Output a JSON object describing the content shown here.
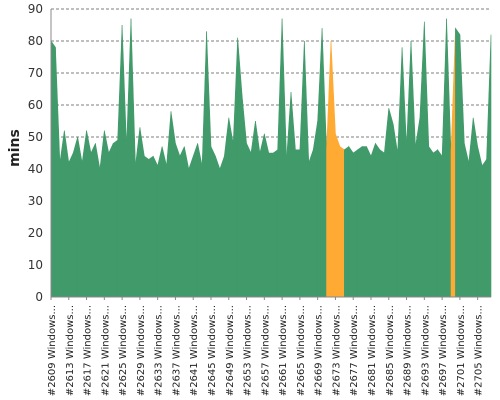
{
  "chart_data": {
    "type": "area",
    "title": "",
    "xlabel": "",
    "ylabel": "mins",
    "ylim": [
      0,
      90
    ],
    "yticks": [
      0,
      10,
      20,
      30,
      40,
      50,
      60,
      70,
      80,
      90
    ],
    "grid": true,
    "colors": {
      "normal": "#419A6A",
      "highlight": "#FFAA33",
      "grid": "#555555",
      "axis": "#888888"
    },
    "highlight_ranges": [
      [
        2671,
        2675
      ],
      [
        2699,
        2700
      ]
    ],
    "categories": [
      "#2609 Windows...",
      "#2613 Windows...",
      "#2617 Windows...",
      "#2621 Windows...",
      "#2625 Windows...",
      "#2629 Windows...",
      "#2633 Windows...",
      "#2637 Windows...",
      "#2641 Windows...",
      "#2645 Windows...",
      "#2649 Windows...",
      "#2653 Windows...",
      "#2657 Windows...",
      "#2661 Windows...",
      "#2665 Windows...",
      "#2669 Windows...",
      "#2673 Windows...",
      "#2677 Windows...",
      "#2681 Windows...",
      "#2685 Windows...",
      "#2689 Windows...",
      "#2693 Windows...",
      "#2697 Windows...",
      "#2701 Windows...",
      "#2705 Windows..."
    ],
    "x": [
      2609,
      2610,
      2611,
      2612,
      2613,
      2614,
      2615,
      2616,
      2617,
      2618,
      2619,
      2620,
      2621,
      2622,
      2623,
      2624,
      2625,
      2626,
      2627,
      2628,
      2629,
      2630,
      2631,
      2632,
      2633,
      2634,
      2635,
      2636,
      2637,
      2638,
      2639,
      2640,
      2641,
      2642,
      2643,
      2644,
      2645,
      2646,
      2647,
      2648,
      2649,
      2650,
      2651,
      2652,
      2653,
      2654,
      2655,
      2656,
      2657,
      2658,
      2659,
      2660,
      2661,
      2662,
      2663,
      2664,
      2665,
      2666,
      2667,
      2668,
      2669,
      2670,
      2671,
      2672,
      2673,
      2674,
      2675,
      2676,
      2677,
      2678,
      2679,
      2680,
      2681,
      2682,
      2683,
      2684,
      2685,
      2686,
      2687,
      2688,
      2689,
      2690,
      2691,
      2692,
      2693,
      2694,
      2695,
      2696,
      2697,
      2698,
      2699,
      2700,
      2701,
      2702,
      2703,
      2704,
      2705,
      2706,
      2707,
      2708
    ],
    "values": [
      80,
      78,
      42,
      52,
      42,
      45,
      50,
      42,
      52,
      45,
      48,
      40,
      52,
      45,
      48,
      49,
      85,
      47,
      87,
      41,
      53,
      44,
      43,
      44,
      41,
      47,
      41,
      58,
      48,
      44,
      47,
      40,
      44,
      48,
      41,
      83,
      47,
      44,
      40,
      44,
      56,
      48,
      81,
      63,
      48,
      45,
      55,
      45,
      51,
      45,
      45,
      46,
      87,
      43,
      64,
      46,
      46,
      80,
      42,
      46,
      55,
      84,
      46,
      80,
      51,
      47,
      46,
      47,
      45,
      46,
      47,
      47,
      44,
      48,
      46,
      45,
      59,
      54,
      45,
      78,
      47,
      80,
      47,
      56,
      86,
      47,
      45,
      46,
      44,
      87,
      45,
      84,
      82,
      48,
      42,
      56,
      47,
      41,
      43,
      82
    ]
  }
}
